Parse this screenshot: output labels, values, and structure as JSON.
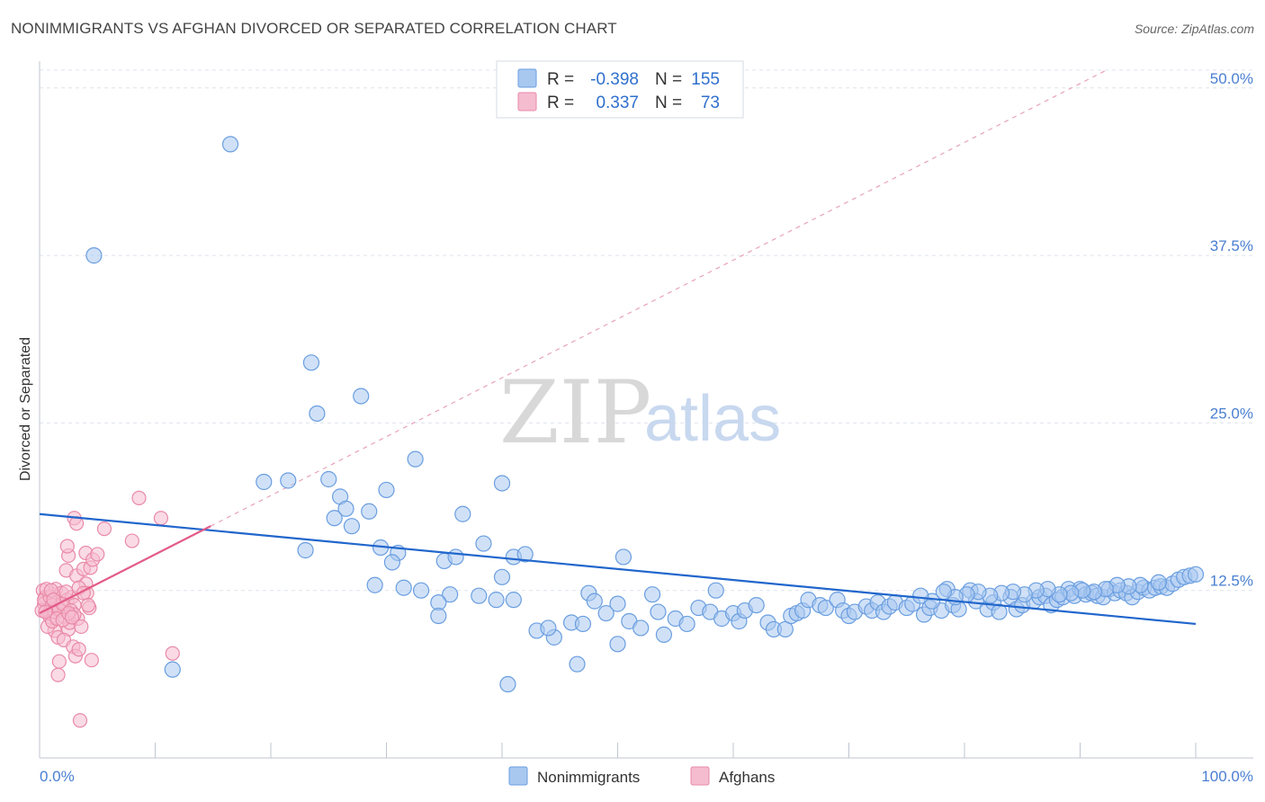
{
  "header": {
    "title": "NONIMMIGRANTS VS AFGHAN DIVORCED OR SEPARATED CORRELATION CHART",
    "source": "Source: ZipAtlas.com"
  },
  "watermark": {
    "zip": "ZIP",
    "atlas": "atlas"
  },
  "colors": {
    "blue_fill": "#a9c8f0",
    "blue_stroke": "#6a9ee0",
    "blue_line": "#2166cc",
    "pink_fill": "#f5bcd0",
    "pink_stroke": "#e98aa8",
    "pink_line": "#e35b87",
    "grid": "#dde3ec",
    "axis_labels": "#4a7fd1"
  },
  "legend_box": {
    "rows": [
      {
        "r_label": "R =",
        "r_value": "-0.398",
        "n_label": "N =",
        "n_value": "155",
        "color": "#a9c8f0"
      },
      {
        "r_label": "R =",
        "r_value": "0.337",
        "n_label": "N =",
        "n_value": "73",
        "color": "#f5bcd0"
      }
    ]
  },
  "chart_data": {
    "type": "scatter",
    "title": "NONIMMIGRANTS VS AFGHAN DIVORCED OR SEPARATED CORRELATION CHART",
    "xlabel": "",
    "ylabel": "Divorced or Separated",
    "xlim": [
      0,
      100
    ],
    "ylim": [
      0,
      52
    ],
    "x_tick_labels": [
      "0.0%",
      "100.0%"
    ],
    "y_ticks": [
      12.5,
      25.0,
      37.5,
      50.0
    ],
    "y_tick_labels": [
      "12.5%",
      "25.0%",
      "37.5%",
      "50.0%"
    ],
    "grid": true,
    "legend_position": "bottom",
    "series": [
      {
        "name": "Nonimmigrants",
        "color": "#a9c8f0",
        "R": -0.398,
        "N": 155,
        "trend": {
          "x": [
            0,
            100
          ],
          "y": [
            18.2,
            10.0
          ]
        },
        "points": [
          [
            16.5,
            45.8
          ],
          [
            4.7,
            37.5
          ],
          [
            23.5,
            29.5
          ],
          [
            27.8,
            27.0
          ],
          [
            24.0,
            25.7
          ],
          [
            32.5,
            22.3
          ],
          [
            19.4,
            20.6
          ],
          [
            21.5,
            20.7
          ],
          [
            25.0,
            20.8
          ],
          [
            30.0,
            20.0
          ],
          [
            40.0,
            20.5
          ],
          [
            26.0,
            19.5
          ],
          [
            26.5,
            18.6
          ],
          [
            28.5,
            18.4
          ],
          [
            25.5,
            17.9
          ],
          [
            36.6,
            18.2
          ],
          [
            27.0,
            17.3
          ],
          [
            38.4,
            16.0
          ],
          [
            23.0,
            15.5
          ],
          [
            29.5,
            15.7
          ],
          [
            31.0,
            15.3
          ],
          [
            41.0,
            15.0
          ],
          [
            42.0,
            15.2
          ],
          [
            35.0,
            14.7
          ],
          [
            36.0,
            15.0
          ],
          [
            30.5,
            14.6
          ],
          [
            50.5,
            15.0
          ],
          [
            11.5,
            6.6
          ],
          [
            29.0,
            12.9
          ],
          [
            31.5,
            12.7
          ],
          [
            33.0,
            12.5
          ],
          [
            35.5,
            12.2
          ],
          [
            38.0,
            12.1
          ],
          [
            40.0,
            13.5
          ],
          [
            41.0,
            11.8
          ],
          [
            34.5,
            11.6
          ],
          [
            34.5,
            10.6
          ],
          [
            39.5,
            11.8
          ],
          [
            43.0,
            9.5
          ],
          [
            44.5,
            9.0
          ],
          [
            46.0,
            10.1
          ],
          [
            44.0,
            9.7
          ],
          [
            47.5,
            12.3
          ],
          [
            48.0,
            11.7
          ],
          [
            47.0,
            10.0
          ],
          [
            49.0,
            10.8
          ],
          [
            50.0,
            11.5
          ],
          [
            51.0,
            10.2
          ],
          [
            52.0,
            9.7
          ],
          [
            53.0,
            12.2
          ],
          [
            53.5,
            10.9
          ],
          [
            54.0,
            9.2
          ],
          [
            46.5,
            7.0
          ],
          [
            50.0,
            8.5
          ],
          [
            40.5,
            5.5
          ],
          [
            55.0,
            10.4
          ],
          [
            56.0,
            10.0
          ],
          [
            57.0,
            11.2
          ],
          [
            58.0,
            10.9
          ],
          [
            58.5,
            12.5
          ],
          [
            59.0,
            10.4
          ],
          [
            60.0,
            10.8
          ],
          [
            60.5,
            10.2
          ],
          [
            61.0,
            11.0
          ],
          [
            62.0,
            11.4
          ],
          [
            63.0,
            10.1
          ],
          [
            63.5,
            9.6
          ],
          [
            64.5,
            9.6
          ],
          [
            65.0,
            10.6
          ],
          [
            65.5,
            10.8
          ],
          [
            66.0,
            11.0
          ],
          [
            66.5,
            11.8
          ],
          [
            67.5,
            11.4
          ],
          [
            68.0,
            11.2
          ],
          [
            69.0,
            11.8
          ],
          [
            69.5,
            11.0
          ],
          [
            70.0,
            10.6
          ],
          [
            70.5,
            10.9
          ],
          [
            71.5,
            11.3
          ],
          [
            72.0,
            11.0
          ],
          [
            72.5,
            11.6
          ],
          [
            73.0,
            10.9
          ],
          [
            73.5,
            11.3
          ],
          [
            74.0,
            11.6
          ],
          [
            75.0,
            11.2
          ],
          [
            75.5,
            11.5
          ],
          [
            76.5,
            10.7
          ],
          [
            77.0,
            11.2
          ],
          [
            78.0,
            11.0
          ],
          [
            78.5,
            12.6
          ],
          [
            79.0,
            11.4
          ],
          [
            79.5,
            11.1
          ],
          [
            80.5,
            12.5
          ],
          [
            81.0,
            11.7
          ],
          [
            82.0,
            11.1
          ],
          [
            82.5,
            11.6
          ],
          [
            83.0,
            10.9
          ],
          [
            84.0,
            12.0
          ],
          [
            84.5,
            11.1
          ],
          [
            85.0,
            11.4
          ],
          [
            86.0,
            11.7
          ],
          [
            86.5,
            12.0
          ],
          [
            87.0,
            12.1
          ],
          [
            87.5,
            11.4
          ],
          [
            88.0,
            11.8
          ],
          [
            88.5,
            12.0
          ],
          [
            89.0,
            12.6
          ],
          [
            89.5,
            12.1
          ],
          [
            90.0,
            12.6
          ],
          [
            90.5,
            12.2
          ],
          [
            91.0,
            12.3
          ],
          [
            91.5,
            12.1
          ],
          [
            92.0,
            12.0
          ],
          [
            92.5,
            12.6
          ],
          [
            93.0,
            12.3
          ],
          [
            93.5,
            12.5
          ],
          [
            94.0,
            12.3
          ],
          [
            94.5,
            12.0
          ],
          [
            95.0,
            12.4
          ],
          [
            95.5,
            12.7
          ],
          [
            96.0,
            12.5
          ],
          [
            96.5,
            12.7
          ],
          [
            97.0,
            12.8
          ],
          [
            97.5,
            12.7
          ],
          [
            98.0,
            13.0
          ],
          [
            98.5,
            13.3
          ],
          [
            99.0,
            13.5
          ],
          [
            99.5,
            13.6
          ],
          [
            100.0,
            13.7
          ],
          [
            96.8,
            13.1
          ],
          [
            95.2,
            12.9
          ],
          [
            94.2,
            12.8
          ],
          [
            93.2,
            12.9
          ],
          [
            92.2,
            12.6
          ],
          [
            91.2,
            12.4
          ],
          [
            90.2,
            12.5
          ],
          [
            89.2,
            12.3
          ],
          [
            88.2,
            12.2
          ],
          [
            87.2,
            12.6
          ],
          [
            86.2,
            12.5
          ],
          [
            85.2,
            12.2
          ],
          [
            84.2,
            12.4
          ],
          [
            83.2,
            12.3
          ],
          [
            82.2,
            12.1
          ],
          [
            81.2,
            12.4
          ],
          [
            80.2,
            12.2
          ],
          [
            79.2,
            12.0
          ],
          [
            78.2,
            12.4
          ],
          [
            77.2,
            11.7
          ],
          [
            76.2,
            12.1
          ]
        ]
      },
      {
        "name": "Afghans",
        "color": "#f5bcd0",
        "R": 0.337,
        "N": 73,
        "trend": {
          "x": [
            0,
            14.8
          ],
          "y": [
            10.8,
            17.3
          ]
        },
        "points": [
          [
            0.3,
            12.5
          ],
          [
            0.5,
            12.0
          ],
          [
            0.4,
            11.5
          ],
          [
            0.6,
            11.0
          ],
          [
            0.8,
            10.8
          ],
          [
            1.0,
            11.2
          ],
          [
            1.2,
            12.2
          ],
          [
            0.9,
            10.5
          ],
          [
            1.5,
            11.6
          ],
          [
            1.8,
            11.0
          ],
          [
            2.0,
            10.6
          ],
          [
            2.2,
            11.3
          ],
          [
            1.3,
            9.5
          ],
          [
            1.6,
            9.0
          ],
          [
            2.5,
            9.6
          ],
          [
            0.7,
            9.8
          ],
          [
            1.1,
            10.2
          ],
          [
            1.4,
            12.6
          ],
          [
            1.9,
            12.3
          ],
          [
            2.4,
            11.8
          ],
          [
            2.8,
            12.0
          ],
          [
            3.0,
            11.4
          ],
          [
            3.3,
            10.4
          ],
          [
            2.6,
            10.1
          ],
          [
            3.6,
            9.8
          ],
          [
            2.1,
            8.8
          ],
          [
            2.9,
            8.3
          ],
          [
            3.1,
            7.6
          ],
          [
            3.4,
            8.1
          ],
          [
            1.7,
            7.2
          ],
          [
            1.6,
            6.2
          ],
          [
            4.5,
            7.3
          ],
          [
            11.5,
            7.8
          ],
          [
            3.5,
            2.8
          ],
          [
            2.3,
            14.0
          ],
          [
            2.5,
            15.1
          ],
          [
            2.4,
            15.8
          ],
          [
            3.2,
            13.6
          ],
          [
            3.8,
            14.1
          ],
          [
            4.0,
            15.3
          ],
          [
            4.4,
            14.2
          ],
          [
            4.6,
            14.8
          ],
          [
            5.0,
            15.2
          ],
          [
            3.0,
            17.9
          ],
          [
            3.2,
            17.5
          ],
          [
            5.6,
            17.1
          ],
          [
            8.0,
            16.2
          ],
          [
            8.6,
            19.4
          ],
          [
            10.5,
            17.9
          ],
          [
            4.0,
            13.0
          ],
          [
            4.1,
            12.3
          ],
          [
            4.3,
            11.2
          ],
          [
            0.2,
            11.0
          ],
          [
            0.4,
            11.8
          ],
          [
            0.9,
            12.0
          ],
          [
            1.1,
            11.4
          ],
          [
            1.3,
            10.9
          ],
          [
            1.7,
            11.1
          ],
          [
            2.0,
            11.5
          ],
          [
            2.3,
            12.4
          ],
          [
            2.7,
            11.0
          ],
          [
            3.0,
            10.7
          ],
          [
            3.4,
            12.7
          ],
          [
            0.6,
            12.6
          ],
          [
            1.0,
            12.5
          ],
          [
            1.5,
            10.4
          ],
          [
            2.0,
            10.3
          ],
          [
            2.5,
            10.8
          ],
          [
            3.8,
            12.3
          ],
          [
            4.2,
            11.4
          ],
          [
            2.8,
            10.5
          ],
          [
            1.2,
            11.8
          ],
          [
            0.5,
            10.9
          ]
        ]
      }
    ]
  }
}
